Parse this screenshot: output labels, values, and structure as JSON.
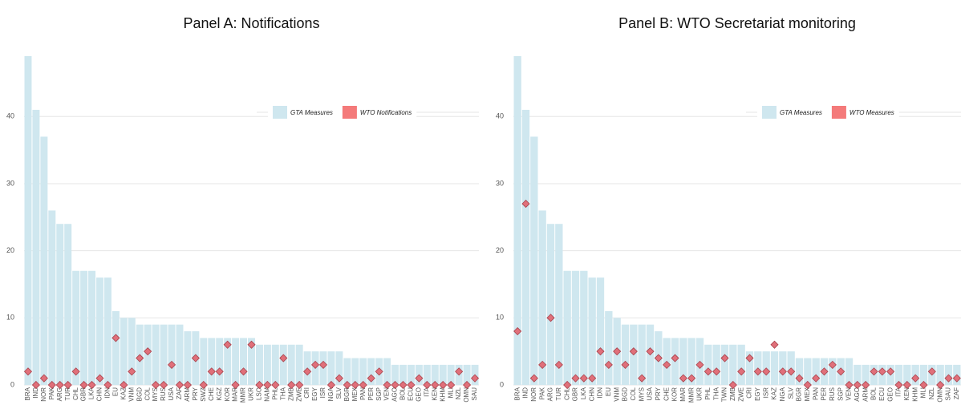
{
  "chart_data": [
    {
      "type": "bar",
      "title": "Panel A: Notifications",
      "categories": [
        "BRA",
        "IND",
        "NOR",
        "PAK",
        "ARG",
        "TUR",
        "CHL",
        "GBR",
        "LKA",
        "CHN",
        "IDN",
        "EU",
        "KAZ",
        "VNM",
        "BGD",
        "COL",
        "MYS",
        "RUS",
        "USA",
        "ZAF",
        "ARM",
        "PRY",
        "SWZ",
        "CHE",
        "KGZ",
        "KOR",
        "MAR",
        "MMR",
        "UKR",
        "LSO",
        "NAM",
        "PHL",
        "THA",
        "ZMB",
        "ZWE",
        "CRI",
        "EGY",
        "ISR",
        "NGA",
        "SLV",
        "BGR",
        "MEX",
        "PAN",
        "PER",
        "SGP",
        "VEN",
        "AGO",
        "BOL",
        "ECU",
        "GEO",
        "ITA",
        "KEN",
        "KHM",
        "MLI",
        "NZL",
        "OMN",
        "SAU"
      ],
      "series": [
        {
          "name": "GTA Measures",
          "color": "#cfe7ef",
          "style": "bar",
          "values": [
            49,
            41,
            37,
            26,
            24,
            24,
            17,
            17,
            17,
            16,
            16,
            11,
            10,
            10,
            9,
            9,
            9,
            9,
            9,
            9,
            8,
            8,
            7,
            7,
            7,
            7,
            7,
            7,
            7,
            6,
            6,
            6,
            6,
            6,
            6,
            5,
            5,
            5,
            5,
            5,
            4,
            4,
            4,
            4,
            4,
            4,
            3,
            3,
            3,
            3,
            3,
            3,
            3,
            3,
            3,
            3,
            3
          ]
        },
        {
          "name": "WTO Notifications",
          "color": "#e0707a",
          "style": "diamond",
          "values": [
            2,
            0,
            1,
            0,
            0,
            0,
            2,
            0,
            0,
            1,
            0,
            7,
            0,
            2,
            4,
            5,
            0,
            0,
            3,
            0,
            0,
            4,
            0,
            2,
            2,
            6,
            0,
            2,
            6,
            0,
            0,
            0,
            4,
            0,
            0,
            2,
            3,
            3,
            0,
            1,
            0,
            0,
            0,
            1,
            2,
            0,
            0,
            0,
            0,
            1,
            0,
            0,
            0,
            0,
            2,
            0,
            1
          ]
        }
      ],
      "ylim": [
        0,
        49
      ],
      "yticks": [
        0,
        10,
        20,
        30,
        40
      ],
      "grid": true
    },
    {
      "type": "bar",
      "title": "Panel B: WTO Secretariat monitoring",
      "categories": [
        "BRA",
        "IND",
        "NOR",
        "PAK",
        "ARG",
        "TUR",
        "CHL",
        "GBR",
        "LKA",
        "CHN",
        "IDN",
        "EU",
        "VNM",
        "BGD",
        "COL",
        "MYS",
        "USA",
        "PRY",
        "CHE",
        "KOR",
        "MAR",
        "MMR",
        "UKR",
        "PHL",
        "THA",
        "TWN",
        "ZMB",
        "ZWE",
        "CRI",
        "EGY",
        "ISR",
        "KAZ",
        "NGA",
        "SLV",
        "BGR",
        "MEX",
        "PAN",
        "PER",
        "RUS",
        "SGP",
        "VEN",
        "AGO",
        "ARM",
        "BOL",
        "ECU",
        "GEO",
        "ITA",
        "KEN",
        "KHM",
        "MLI",
        "NZL",
        "OMN",
        "SAU",
        "ZAF"
      ],
      "series": [
        {
          "name": "GTA Measures",
          "color": "#cfe7ef",
          "style": "bar",
          "values": [
            49,
            41,
            37,
            26,
            24,
            24,
            17,
            17,
            17,
            16,
            16,
            11,
            10,
            9,
            9,
            9,
            9,
            8,
            7,
            7,
            7,
            7,
            7,
            6,
            6,
            6,
            6,
            6,
            5,
            5,
            5,
            5,
            5,
            5,
            4,
            4,
            4,
            4,
            4,
            4,
            4,
            3,
            3,
            3,
            3,
            3,
            3,
            3,
            3,
            3,
            3,
            3,
            3,
            3
          ]
        },
        {
          "name": "WTO Measures",
          "color": "#e0707a",
          "style": "diamond",
          "values": [
            8,
            27,
            1,
            3,
            10,
            3,
            0,
            1,
            1,
            1,
            5,
            3,
            5,
            3,
            5,
            1,
            5,
            4,
            3,
            4,
            1,
            1,
            3,
            2,
            2,
            4,
            0,
            2,
            4,
            2,
            2,
            6,
            2,
            2,
            1,
            0,
            1,
            2,
            3,
            2,
            0,
            0,
            0,
            2,
            2,
            2,
            0,
            0,
            1,
            0,
            2,
            0,
            1,
            1
          ]
        }
      ],
      "ylim": [
        0,
        49
      ],
      "yticks": [
        0,
        10,
        20,
        30,
        40
      ],
      "grid": true
    }
  ]
}
